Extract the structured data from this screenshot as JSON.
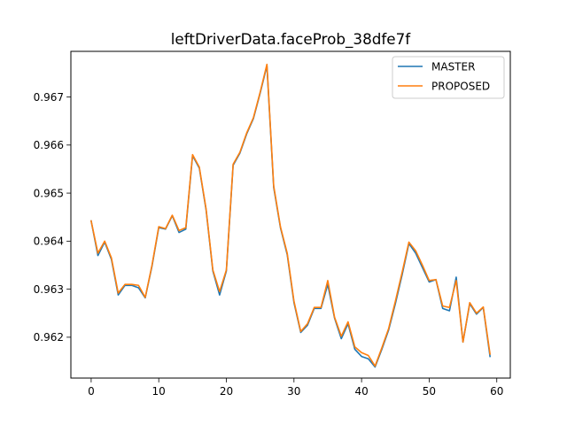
{
  "chart_data": {
    "type": "line",
    "title": "leftDriverData.faceProb_38dfe7f",
    "xlabel": "",
    "ylabel": "",
    "xlim": [
      -3,
      62
    ],
    "ylim": [
      0.96115,
      0.96795
    ],
    "xticks": [
      0,
      10,
      20,
      30,
      40,
      50,
      60
    ],
    "xtick_labels": [
      "0",
      "10",
      "20",
      "30",
      "40",
      "50",
      "60"
    ],
    "yticks": [
      0.962,
      0.963,
      0.964,
      0.965,
      0.966,
      0.967
    ],
    "ytick_labels": [
      "0.962",
      "0.963",
      "0.964",
      "0.965",
      "0.966",
      "0.967"
    ],
    "grid": false,
    "legend_position": "upper right",
    "x": [
      0,
      1,
      2,
      3,
      4,
      5,
      6,
      7,
      8,
      9,
      10,
      11,
      12,
      13,
      14,
      15,
      16,
      17,
      18,
      19,
      20,
      21,
      22,
      23,
      24,
      25,
      26,
      27,
      28,
      29,
      30,
      31,
      32,
      33,
      34,
      35,
      36,
      37,
      38,
      39,
      40,
      41,
      42,
      43,
      44,
      45,
      46,
      47,
      48,
      49,
      50,
      51,
      52,
      53,
      54,
      55,
      56,
      57,
      58,
      59
    ],
    "series": [
      {
        "name": "MASTER",
        "color": "#1f77b4",
        "values": [
          0.96442,
          0.9637,
          0.96398,
          0.96362,
          0.96288,
          0.96308,
          0.96308,
          0.96303,
          0.96282,
          0.96348,
          0.96428,
          0.96425,
          0.96453,
          0.96418,
          0.96425,
          0.96578,
          0.96552,
          0.96465,
          0.96338,
          0.96288,
          0.96338,
          0.96558,
          0.96583,
          0.96623,
          0.96655,
          0.96708,
          0.96765,
          0.96512,
          0.96428,
          0.96372,
          0.96272,
          0.9621,
          0.96225,
          0.9626,
          0.9626,
          0.9631,
          0.9624,
          0.96197,
          0.96228,
          0.96175,
          0.9616,
          0.96155,
          0.96138,
          0.96175,
          0.96215,
          0.9627,
          0.9633,
          0.96395,
          0.96375,
          0.96345,
          0.96315,
          0.9632,
          0.9626,
          0.96255,
          0.96325,
          0.9619,
          0.9627,
          0.96248,
          0.96262,
          0.9616
        ]
      },
      {
        "name": "PROPOSED",
        "color": "#ff7f0e",
        "values": [
          0.96442,
          0.96375,
          0.964,
          0.96365,
          0.96292,
          0.9631,
          0.9631,
          0.96308,
          0.96283,
          0.9635,
          0.9643,
          0.96426,
          0.96454,
          0.96422,
          0.96428,
          0.9658,
          0.96554,
          0.96467,
          0.9634,
          0.96295,
          0.9634,
          0.9656,
          0.96585,
          0.96625,
          0.96657,
          0.9671,
          0.96768,
          0.96515,
          0.9643,
          0.96375,
          0.96275,
          0.96212,
          0.96228,
          0.96262,
          0.96262,
          0.96318,
          0.96242,
          0.96202,
          0.96232,
          0.9618,
          0.96168,
          0.96162,
          0.9614,
          0.96178,
          0.96218,
          0.96275,
          0.96335,
          0.96398,
          0.9638,
          0.9635,
          0.96318,
          0.9632,
          0.96265,
          0.96262,
          0.96318,
          0.9619,
          0.96272,
          0.9625,
          0.96263,
          0.96165
        ]
      }
    ]
  }
}
